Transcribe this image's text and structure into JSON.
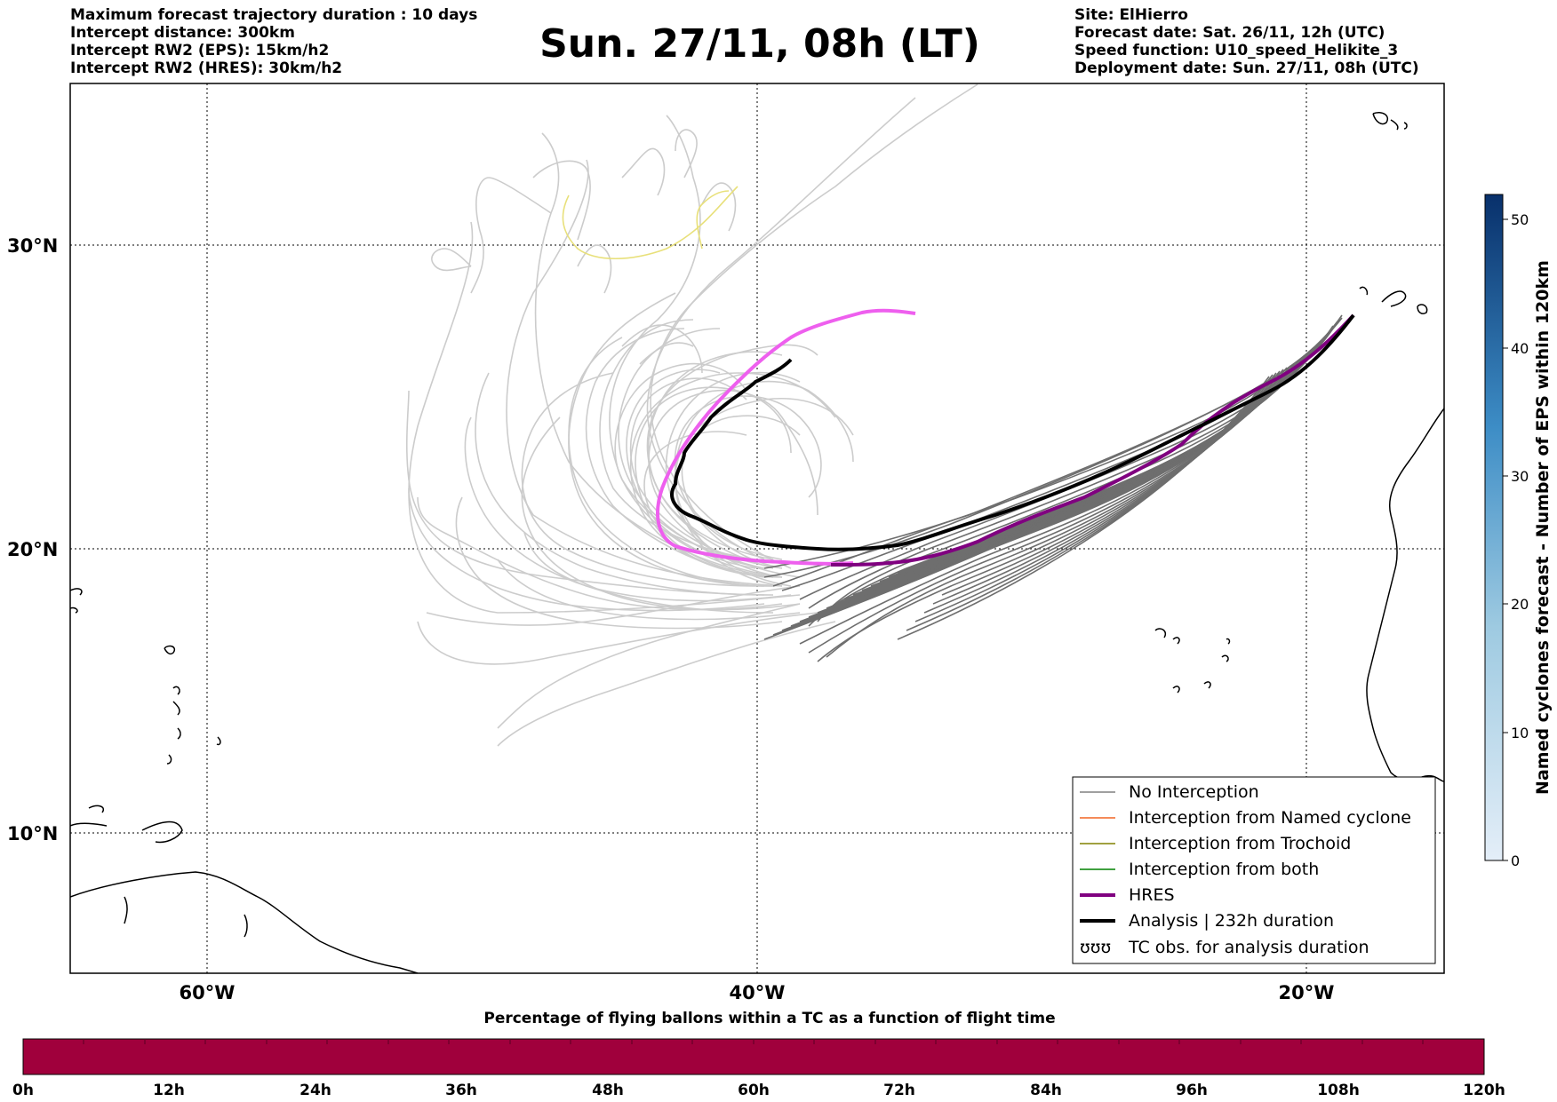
{
  "title": "Sun. 27/11, 08h (LT)",
  "header_left": [
    "Maximum forecast trajectory duration : 10 days",
    "Intercept distance: 300km",
    "Intercept RW2 (EPS):  15km/h2",
    "Intercept RW2 (HRES): 30km/h2"
  ],
  "header_right": [
    "Site: ElHierro",
    "Forecast date: Sat. 26/11, 12h (UTC)",
    "Speed function: U10_speed_Helikite_3",
    "Deployment date: Sun. 27/11, 08h (UTC)"
  ],
  "map": {
    "lon_range": [
      -65,
      15
    ],
    "lat_range": [
      5,
      35
    ],
    "lat_labels": [
      "30°N",
      "20°N",
      "10°N"
    ],
    "lon_labels": [
      "60°W",
      "40°W",
      "20°W"
    ],
    "grid": "dotted"
  },
  "legend": {
    "placement": "lower-right",
    "items": [
      {
        "label": "No Interception",
        "color": "#808080"
      },
      {
        "label": "Interception from Named cyclone",
        "color": "#f26522"
      },
      {
        "label": "Interception from Trochoid",
        "color": "#808000"
      },
      {
        "label": "Interception from both",
        "color": "#008000"
      },
      {
        "label": "HRES",
        "color": "#800080"
      },
      {
        "label": "Analysis | 232h duration",
        "color": "#000000"
      },
      {
        "label": "TC obs. for analysis duration",
        "symbol": "ʊʊʊ"
      }
    ]
  },
  "colorbar_right": {
    "label": "Named cyclones forecast - Number of EPS within 120km",
    "ticks": [
      "0",
      "10",
      "20",
      "30",
      "40",
      "50"
    ],
    "color_low": "#e4eef8",
    "color_high": "#08306b"
  },
  "colorbar_bottom": {
    "label": "Percentage of flying ballons within a TC as a function of flight time",
    "ticks": [
      "0h",
      "12h",
      "24h",
      "36h",
      "48h",
      "60h",
      "72h",
      "84h",
      "96h",
      "108h",
      "120h"
    ],
    "fill_color": "#a0003c"
  }
}
